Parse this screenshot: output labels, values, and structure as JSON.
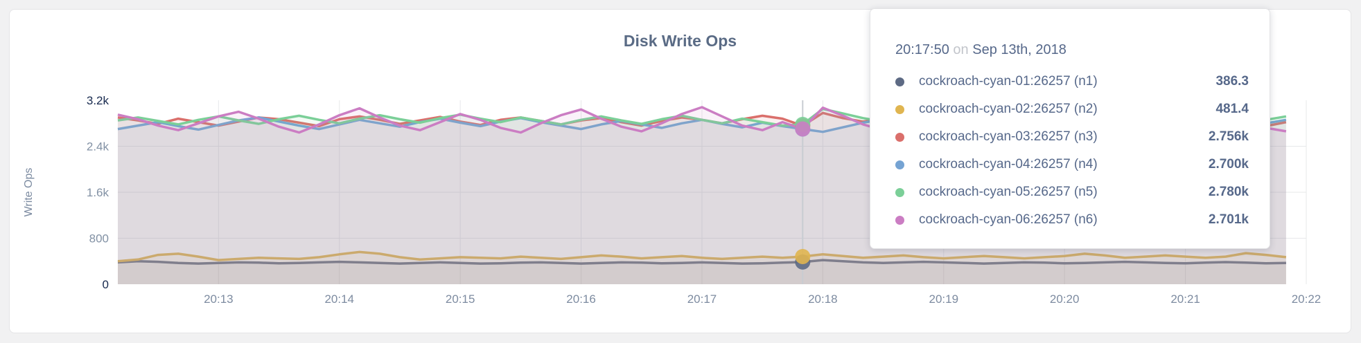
{
  "card": {
    "title": "Disk Write Ops"
  },
  "y_axis": {
    "label": "Write Ops",
    "ticks": [
      {
        "label": "0",
        "value": 0,
        "emphasis": true
      },
      {
        "label": "800",
        "value": 800,
        "emphasis": false
      },
      {
        "label": "1.6k",
        "value": 1600,
        "emphasis": false
      },
      {
        "label": "2.4k",
        "value": 2400,
        "emphasis": false
      },
      {
        "label": "3.2k",
        "value": 3200,
        "emphasis": true
      }
    ]
  },
  "tooltip": {
    "time": "20:17:50",
    "on_word": "on",
    "date": "Sep 13th, 2018",
    "rows": [
      {
        "name": "cockroach-cyan-01:26257 (n1)",
        "value": "386.3",
        "color": "#5d6a84"
      },
      {
        "name": "cockroach-cyan-02:26257 (n2)",
        "value": "481.4",
        "color": "#e0b550"
      },
      {
        "name": "cockroach-cyan-03:26257 (n3)",
        "value": "2.756k",
        "color": "#da6f6b"
      },
      {
        "name": "cockroach-cyan-04:26257 (n4)",
        "value": "2.700k",
        "color": "#75a3d3"
      },
      {
        "name": "cockroach-cyan-05:26257 (n5)",
        "value": "2.780k",
        "color": "#7bcf98"
      },
      {
        "name": "cockroach-cyan-06:26257 (n6)",
        "value": "2.701k",
        "color": "#cb7dc3"
      }
    ]
  },
  "colors": {
    "gridline": "#e7e8ea",
    "guideline": "#c8ccd2",
    "title": "#5a6b85"
  },
  "chart_data": {
    "type": "line",
    "title": "Disk Write Ops",
    "xlabel": "",
    "ylabel": "Write Ops",
    "ylim": [
      0,
      3200
    ],
    "y_gridlines": [
      800,
      1600,
      2400
    ],
    "x_domain": [
      "20:12:10",
      "20:22:00"
    ],
    "x_start": "20:12:10",
    "x_step_seconds": 10,
    "x_ticks": [
      "20:13",
      "20:14",
      "20:15",
      "20:16",
      "20:17",
      "20:18",
      "20:19",
      "20:20",
      "20:21",
      "20:22"
    ],
    "highlight": {
      "time": "20:17:50",
      "index": 34
    },
    "area_opacity": 0.1,
    "series": [
      {
        "name": "cockroach-cyan-01:26257 (n1)",
        "color": "#5d6a84",
        "values": [
          380,
          400,
          390,
          370,
          360,
          370,
          380,
          375,
          365,
          370,
          380,
          390,
          380,
          370,
          360,
          370,
          380,
          370,
          360,
          365,
          375,
          380,
          370,
          360,
          370,
          380,
          375,
          365,
          370,
          380,
          370,
          360,
          365,
          375,
          386.3,
          420,
          400,
          380,
          370,
          380,
          390,
          380,
          370,
          360,
          370,
          380,
          375,
          365,
          370,
          380,
          390,
          380,
          370,
          365,
          375,
          385,
          375,
          365,
          370
        ]
      },
      {
        "name": "cockroach-cyan-02:26257 (n2)",
        "color": "#e0b550",
        "values": [
          400,
          430,
          510,
          530,
          480,
          420,
          440,
          460,
          450,
          440,
          470,
          520,
          560,
          530,
          470,
          430,
          450,
          470,
          460,
          450,
          480,
          460,
          440,
          470,
          500,
          480,
          450,
          470,
          490,
          460,
          440,
          460,
          480,
          460,
          481.4,
          520,
          490,
          460,
          480,
          500,
          470,
          450,
          470,
          490,
          470,
          450,
          470,
          490,
          530,
          500,
          460,
          480,
          500,
          480,
          460,
          480,
          540,
          510,
          470
        ]
      },
      {
        "name": "cockroach-cyan-03:26257 (n3)",
        "color": "#da6f6b",
        "values": [
          2900,
          2850,
          2790,
          2880,
          2820,
          2760,
          2830,
          2900,
          2870,
          2810,
          2750,
          2870,
          2920,
          2860,
          2790,
          2850,
          2910,
          2830,
          2770,
          2860,
          2900,
          2840,
          2780,
          2850,
          2890,
          2820,
          2760,
          2840,
          2900,
          2860,
          2800,
          2870,
          2930,
          2880,
          2756,
          2980,
          2890,
          2830,
          2870,
          2910,
          2850,
          2790,
          2860,
          2900,
          2840,
          2780,
          2850,
          2890,
          2830,
          2770,
          2840,
          2880,
          2820,
          2760,
          2830,
          2870,
          2810,
          2750,
          2820
        ]
      },
      {
        "name": "cockroach-cyan-04:26257 (n4)",
        "color": "#75a3d3",
        "values": [
          2700,
          2760,
          2820,
          2750,
          2690,
          2770,
          2850,
          2900,
          2830,
          2760,
          2700,
          2780,
          2860,
          2800,
          2740,
          2820,
          2880,
          2810,
          2750,
          2830,
          2890,
          2820,
          2760,
          2700,
          2780,
          2840,
          2780,
          2720,
          2800,
          2860,
          2790,
          2730,
          2810,
          2750,
          2700,
          2650,
          2730,
          2810,
          2870,
          2800,
          2740,
          2820,
          2760,
          2700,
          2780,
          2840,
          2770,
          2710,
          2790,
          2850,
          2780,
          2720,
          2800,
          2760,
          2700,
          2780,
          2720,
          2800,
          2860
        ]
      },
      {
        "name": "cockroach-cyan-05:26257 (n5)",
        "color": "#7bcf98",
        "values": [
          2850,
          2900,
          2840,
          2780,
          2860,
          2920,
          2850,
          2790,
          2870,
          2930,
          2860,
          2800,
          2880,
          2940,
          2870,
          2810,
          2890,
          2950,
          2880,
          2820,
          2900,
          2840,
          2780,
          2860,
          2920,
          2850,
          2790,
          2870,
          2930,
          2860,
          2800,
          2880,
          2820,
          2760,
          2780,
          3050,
          2970,
          2890,
          2830,
          2910,
          2850,
          2790,
          2870,
          2930,
          2860,
          2800,
          2880,
          2940,
          2870,
          2810,
          2890,
          2830,
          2770,
          2850,
          2910,
          2840,
          2780,
          2860,
          2920
        ]
      },
      {
        "name": "cockroach-cyan-06:26257 (n6)",
        "color": "#cb7dc3",
        "values": [
          2950,
          2870,
          2760,
          2680,
          2800,
          2920,
          3000,
          2880,
          2740,
          2640,
          2780,
          2940,
          3060,
          2900,
          2760,
          2680,
          2820,
          2960,
          2860,
          2720,
          2640,
          2800,
          2940,
          3040,
          2880,
          2740,
          2660,
          2800,
          2960,
          3080,
          2920,
          2760,
          2680,
          2820,
          2701,
          3070,
          2930,
          2780,
          2680,
          2840,
          2980,
          2860,
          2720,
          2660,
          2820,
          2960,
          2880,
          2740,
          2680,
          2840,
          2980,
          2900,
          2760,
          2680,
          2820,
          2940,
          2860,
          2720,
          2660
        ]
      }
    ]
  }
}
